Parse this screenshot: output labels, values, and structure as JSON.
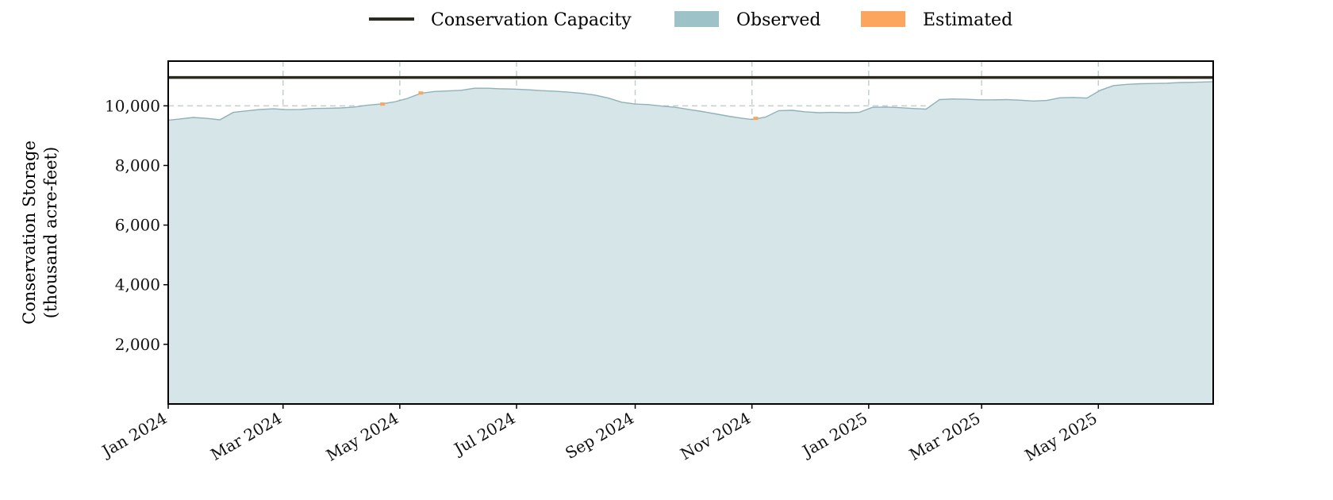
{
  "chart_data": {
    "type": "area",
    "title": "",
    "xlabel": "",
    "ylabel": "Conservation Storage",
    "ylabel_units": "(thousand acre-feet)",
    "ylim": [
      0,
      11500
    ],
    "xlim": [
      "2024-01-01",
      "2025-06-30"
    ],
    "yticks": [
      2000,
      4000,
      6000,
      8000,
      10000
    ],
    "ytick_labels": [
      "2,000",
      "4,000",
      "6,000",
      "8,000",
      "10,000"
    ],
    "xticks": [
      "2024-01-01",
      "2024-03-01",
      "2024-05-01",
      "2024-07-01",
      "2024-09-01",
      "2024-11-01",
      "2025-01-01",
      "2025-03-01",
      "2025-05-01"
    ],
    "xtick_labels": [
      "Jan 2024",
      "Mar 2024",
      "May 2024",
      "Jul 2024",
      "Sep 2024",
      "Nov 2024",
      "Jan 2025",
      "Mar 2025",
      "May 2025"
    ],
    "grid": true,
    "legend_position": "top-center",
    "colors": {
      "capacity": "#2b2a1e",
      "observed_fill": "#d6e5e8",
      "observed_line": "#8fb2b8",
      "observed_legend": "#9dc2c8",
      "estimated": "#fba55f",
      "grid": "#c4cfcb",
      "axis": "#000000"
    },
    "capacity": {
      "name": "Conservation Capacity",
      "value": 10950
    },
    "observed": {
      "name": "Observed",
      "x": [
        "2024-01-01",
        "2024-01-07",
        "2024-01-14",
        "2024-01-21",
        "2024-01-28",
        "2024-02-04",
        "2024-02-11",
        "2024-02-18",
        "2024-02-25",
        "2024-03-03",
        "2024-03-10",
        "2024-03-17",
        "2024-03-24",
        "2024-03-31",
        "2024-04-07",
        "2024-04-14",
        "2024-04-21",
        "2024-04-28",
        "2024-05-05",
        "2024-05-12",
        "2024-05-19",
        "2024-05-26",
        "2024-06-02",
        "2024-06-09",
        "2024-06-16",
        "2024-06-23",
        "2024-06-30",
        "2024-07-07",
        "2024-07-14",
        "2024-07-21",
        "2024-07-28",
        "2024-08-04",
        "2024-08-11",
        "2024-08-18",
        "2024-08-25",
        "2024-09-01",
        "2024-09-08",
        "2024-09-15",
        "2024-09-22",
        "2024-09-29",
        "2024-10-06",
        "2024-10-13",
        "2024-10-20",
        "2024-10-27",
        "2024-11-01",
        "2024-11-08",
        "2024-11-15",
        "2024-11-22",
        "2024-11-29",
        "2024-12-06",
        "2024-12-13",
        "2024-12-20",
        "2024-12-27",
        "2025-01-03",
        "2025-01-10",
        "2025-01-17",
        "2025-01-24",
        "2025-01-31",
        "2025-02-07",
        "2025-02-14",
        "2025-02-21",
        "2025-02-28",
        "2025-03-07",
        "2025-03-14",
        "2025-03-21",
        "2025-03-28",
        "2025-04-04",
        "2025-04-11",
        "2025-04-18",
        "2025-04-25",
        "2025-05-02",
        "2025-05-09",
        "2025-05-16",
        "2025-05-23",
        "2025-05-30",
        "2025-06-06",
        "2025-06-13",
        "2025-06-20",
        "2025-06-30"
      ],
      "y": [
        9520,
        9560,
        9610,
        9580,
        9530,
        9780,
        9830,
        9880,
        9900,
        9870,
        9880,
        9910,
        9920,
        9930,
        9960,
        10020,
        10060,
        10130,
        10250,
        10420,
        10480,
        10500,
        10520,
        10590,
        10590,
        10570,
        10560,
        10540,
        10510,
        10490,
        10460,
        10420,
        10360,
        10260,
        10120,
        10060,
        10040,
        9990,
        9950,
        9880,
        9810,
        9730,
        9650,
        9580,
        9540,
        9620,
        9840,
        9850,
        9800,
        9770,
        9780,
        9770,
        9780,
        9950,
        9960,
        9940,
        9910,
        9890,
        10210,
        10230,
        10220,
        10200,
        10200,
        10210,
        10190,
        10160,
        10180,
        10270,
        10280,
        10260,
        10520,
        10680,
        10720,
        10740,
        10750,
        10760,
        10780,
        10790,
        10810
      ]
    },
    "estimated": {
      "name": "Estimated",
      "x": [
        "2024-04-22",
        "2024-05-12",
        "2024-11-03"
      ],
      "y": [
        10060,
        10430,
        9580
      ]
    }
  }
}
